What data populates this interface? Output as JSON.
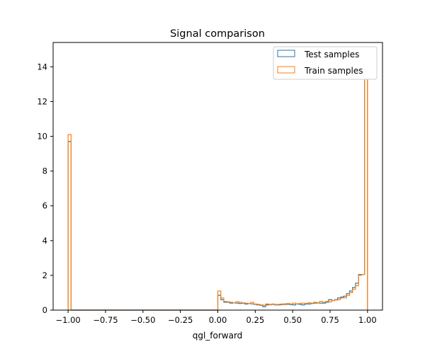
{
  "chart_data": {
    "type": "histogram-step",
    "title": "Signal comparison",
    "xlabel": "qgl_forward",
    "ylabel": "",
    "xlim": [
      -1.1,
      1.1
    ],
    "ylim": [
      0,
      15.4
    ],
    "xticks": [
      -1.0,
      -0.75,
      -0.5,
      -0.25,
      0.0,
      0.25,
      0.5,
      0.75,
      1.0
    ],
    "xtick_labels": [
      "−1.00",
      "−0.75",
      "−0.50",
      "−0.25",
      "0.00",
      "0.25",
      "0.50",
      "0.75",
      "1.00"
    ],
    "yticks": [
      0,
      2,
      4,
      6,
      8,
      10,
      12,
      14
    ],
    "ytick_labels": [
      "0",
      "2",
      "4",
      "6",
      "8",
      "10",
      "12",
      "14"
    ],
    "legend_position": "top-right",
    "bin_edges_start": -1.0,
    "bin_width": 0.02,
    "series": [
      {
        "name": "Test samples",
        "color": "#1f77b4",
        "values": [
          9.7,
          0,
          0,
          0,
          0,
          0,
          0,
          0,
          0,
          0,
          0,
          0,
          0,
          0,
          0,
          0,
          0,
          0,
          0,
          0,
          0,
          0,
          0,
          0,
          0,
          0,
          0,
          0,
          0,
          0,
          0,
          0,
          0,
          0,
          0,
          0,
          0,
          0,
          0,
          0,
          0,
          0,
          0,
          0,
          0,
          0,
          0,
          0,
          0,
          0,
          0.85,
          0.6,
          0.45,
          0.45,
          0.4,
          0.42,
          0.4,
          0.38,
          0.4,
          0.35,
          0.38,
          0.36,
          0.33,
          0.3,
          0.28,
          0.2,
          0.3,
          0.32,
          0.33,
          0.3,
          0.3,
          0.32,
          0.35,
          0.33,
          0.32,
          0.3,
          0.35,
          0.33,
          0.3,
          0.35,
          0.35,
          0.38,
          0.4,
          0.42,
          0.4,
          0.4,
          0.45,
          0.6,
          0.55,
          0.6,
          0.7,
          0.75,
          0.8,
          0.95,
          1.1,
          1.3,
          1.55,
          2.05,
          2.05,
          14.6
        ]
      },
      {
        "name": "Train samples",
        "color": "#ff7f0e",
        "values": [
          10.1,
          0,
          0,
          0,
          0,
          0,
          0,
          0,
          0,
          0,
          0,
          0,
          0,
          0,
          0,
          0,
          0,
          0,
          0,
          0,
          0,
          0,
          0,
          0,
          0,
          0,
          0,
          0,
          0,
          0,
          0,
          0,
          0,
          0,
          0,
          0,
          0,
          0,
          0,
          0,
          0,
          0,
          0,
          0,
          0,
          0,
          0,
          0,
          0,
          0,
          1.1,
          0.7,
          0.5,
          0.48,
          0.45,
          0.42,
          0.48,
          0.45,
          0.42,
          0.4,
          0.38,
          0.45,
          0.35,
          0.33,
          0.3,
          0.28,
          0.35,
          0.3,
          0.35,
          0.32,
          0.33,
          0.35,
          0.32,
          0.38,
          0.35,
          0.4,
          0.36,
          0.38,
          0.4,
          0.38,
          0.42,
          0.4,
          0.45,
          0.4,
          0.5,
          0.45,
          0.5,
          0.48,
          0.55,
          0.58,
          0.6,
          0.7,
          0.7,
          0.85,
          1.0,
          1.2,
          1.4,
          2.0,
          2.05,
          14.0
        ]
      }
    ]
  }
}
